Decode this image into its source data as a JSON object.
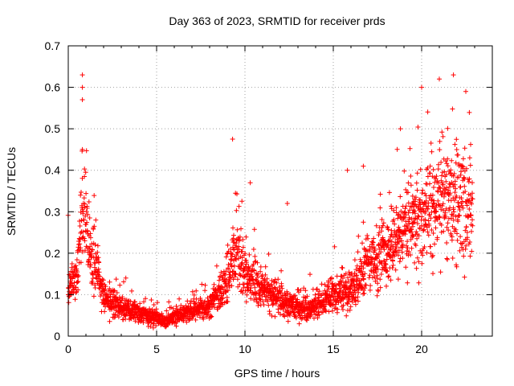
{
  "chart_data": {
    "type": "scatter",
    "title": "Day 363 of 2023, SRMTID for receiver prds",
    "xlabel": "GPS time / hours",
    "ylabel": "SRMTID / TECUs",
    "xlim": [
      0,
      24
    ],
    "ylim": [
      0,
      0.7
    ],
    "xticks": [
      0,
      5,
      10,
      15,
      20
    ],
    "yticks": [
      0,
      0.1,
      0.2,
      0.3,
      0.4,
      0.5,
      0.6,
      0.7
    ],
    "grid": true,
    "marker": "+",
    "color": "#ff0000",
    "x_range_observed": [
      0,
      22.9
    ],
    "profile": [
      {
        "x": 0.0,
        "y": 0.12
      },
      {
        "x": 0.5,
        "y": 0.14
      },
      {
        "x": 0.8,
        "y": 0.3
      },
      {
        "x": 1.2,
        "y": 0.2
      },
      {
        "x": 1.6,
        "y": 0.16
      },
      {
        "x": 2.0,
        "y": 0.09
      },
      {
        "x": 3.0,
        "y": 0.07
      },
      {
        "x": 4.0,
        "y": 0.055
      },
      {
        "x": 5.0,
        "y": 0.045
      },
      {
        "x": 5.5,
        "y": 0.035
      },
      {
        "x": 6.0,
        "y": 0.045
      },
      {
        "x": 7.0,
        "y": 0.06
      },
      {
        "x": 8.0,
        "y": 0.07
      },
      {
        "x": 9.0,
        "y": 0.13
      },
      {
        "x": 9.5,
        "y": 0.2
      },
      {
        "x": 10.0,
        "y": 0.15
      },
      {
        "x": 11.0,
        "y": 0.11
      },
      {
        "x": 12.0,
        "y": 0.09
      },
      {
        "x": 13.0,
        "y": 0.07
      },
      {
        "x": 14.0,
        "y": 0.07
      },
      {
        "x": 15.0,
        "y": 0.1
      },
      {
        "x": 16.0,
        "y": 0.11
      },
      {
        "x": 17.0,
        "y": 0.17
      },
      {
        "x": 18.0,
        "y": 0.2
      },
      {
        "x": 19.0,
        "y": 0.27
      },
      {
        "x": 20.0,
        "y": 0.26
      },
      {
        "x": 21.0,
        "y": 0.33
      },
      {
        "x": 22.0,
        "y": 0.34
      },
      {
        "x": 22.9,
        "y": 0.3
      }
    ],
    "extreme_points": [
      {
        "x": 0.8,
        "y": 0.63
      },
      {
        "x": 0.8,
        "y": 0.6
      },
      {
        "x": 0.8,
        "y": 0.57
      },
      {
        "x": 0.8,
        "y": 0.45
      },
      {
        "x": 9.3,
        "y": 0.475
      },
      {
        "x": 10.3,
        "y": 0.37
      },
      {
        "x": 12.4,
        "y": 0.32
      },
      {
        "x": 15.8,
        "y": 0.4
      },
      {
        "x": 16.7,
        "y": 0.41
      },
      {
        "x": 18.8,
        "y": 0.5
      },
      {
        "x": 20.0,
        "y": 0.6
      },
      {
        "x": 21.0,
        "y": 0.62
      },
      {
        "x": 21.8,
        "y": 0.63
      },
      {
        "x": 22.5,
        "y": 0.59
      }
    ]
  }
}
